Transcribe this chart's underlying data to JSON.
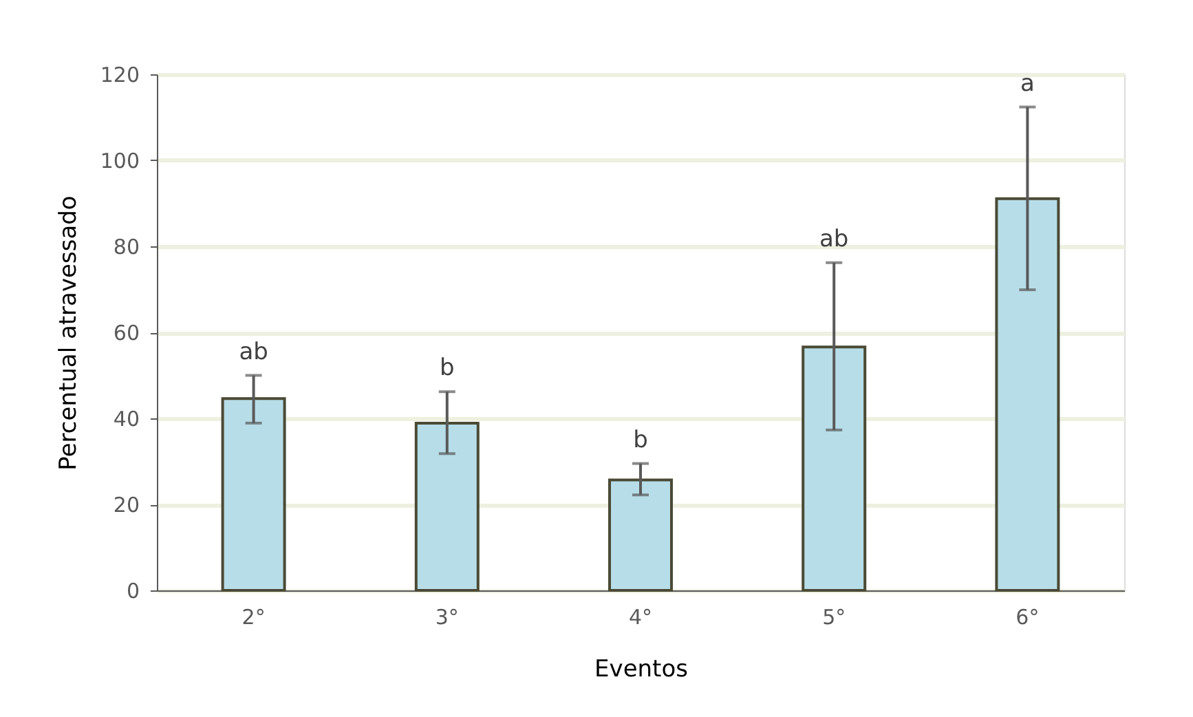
{
  "chart_data": {
    "type": "bar",
    "xlabel": "Eventos",
    "ylabel": "Percentual atravessado",
    "categories": [
      "2°",
      "3°",
      "4°",
      "5°",
      "6°"
    ],
    "values": [
      44.6,
      38.9,
      25.7,
      56.6,
      91.1
    ],
    "errors": [
      [
        38.9,
        50.0
      ],
      [
        31.8,
        46.2
      ],
      [
        22.2,
        29.5
      ],
      [
        37.3,
        76.2
      ],
      [
        69.9,
        112.4
      ]
    ],
    "color": "#b7dde8",
    "ylim": [
      0,
      120
    ],
    "yticks": [
      0,
      20,
      40,
      60,
      80,
      100,
      120
    ],
    "grid": "y",
    "annotations": [
      {
        "text": "ab",
        "x": "2°",
        "y": 50.0
      },
      {
        "text": "b",
        "x": "3°",
        "y": 46.2
      },
      {
        "text": "b",
        "x": "4°",
        "y": 29.5
      },
      {
        "text": "ab",
        "x": "5°",
        "y": 76.2
      },
      {
        "text": "a",
        "x": "6°",
        "y": 112.4
      }
    ]
  }
}
